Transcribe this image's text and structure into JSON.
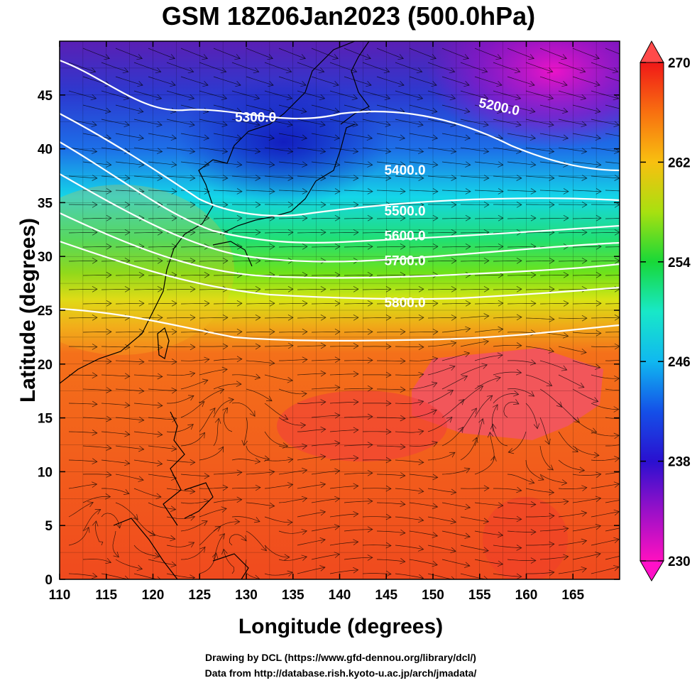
{
  "title": "GSM 18Z06Jan2023 (500.0hPa)",
  "xlabel": "Longitude (degrees)",
  "ylabel": "Latitude  (degrees)",
  "credits": [
    "Drawing by DCL (https://www.gfd-dennou.org/library/dcl/)",
    "Data from http://database.rish.kyoto-u.ac.jp/arch/jmadata/"
  ],
  "chart_data": {
    "type": "heatmap",
    "xlim": [
      110,
      170
    ],
    "ylim": [
      0,
      50
    ],
    "x_ticks": [
      110,
      115,
      120,
      125,
      130,
      135,
      140,
      145,
      150,
      155,
      160,
      165
    ],
    "y_ticks": [
      0,
      5,
      10,
      15,
      20,
      25,
      30,
      35,
      40,
      45
    ],
    "colorbar": {
      "min": 230,
      "max": 270,
      "ticks": [
        230,
        238,
        246,
        254,
        262,
        270
      ]
    },
    "contours": [
      {
        "label": "5200.0",
        "label_lon": 157,
        "label_lat": 43.5
      },
      {
        "label": "5300.0",
        "label_lon": 131,
        "label_lat": 42.5
      },
      {
        "label": "5400.0",
        "label_lon": 147,
        "label_lat": 37.6
      },
      {
        "label": "5500.0",
        "label_lon": 147,
        "label_lat": 33.8
      },
      {
        "label": "5600.0",
        "label_lon": 147,
        "label_lat": 31.5
      },
      {
        "label": "5700.0",
        "label_lon": 147,
        "label_lat": 29.2
      },
      {
        "label": "5800.0",
        "label_lon": 147,
        "label_lat": 25.3
      }
    ]
  }
}
